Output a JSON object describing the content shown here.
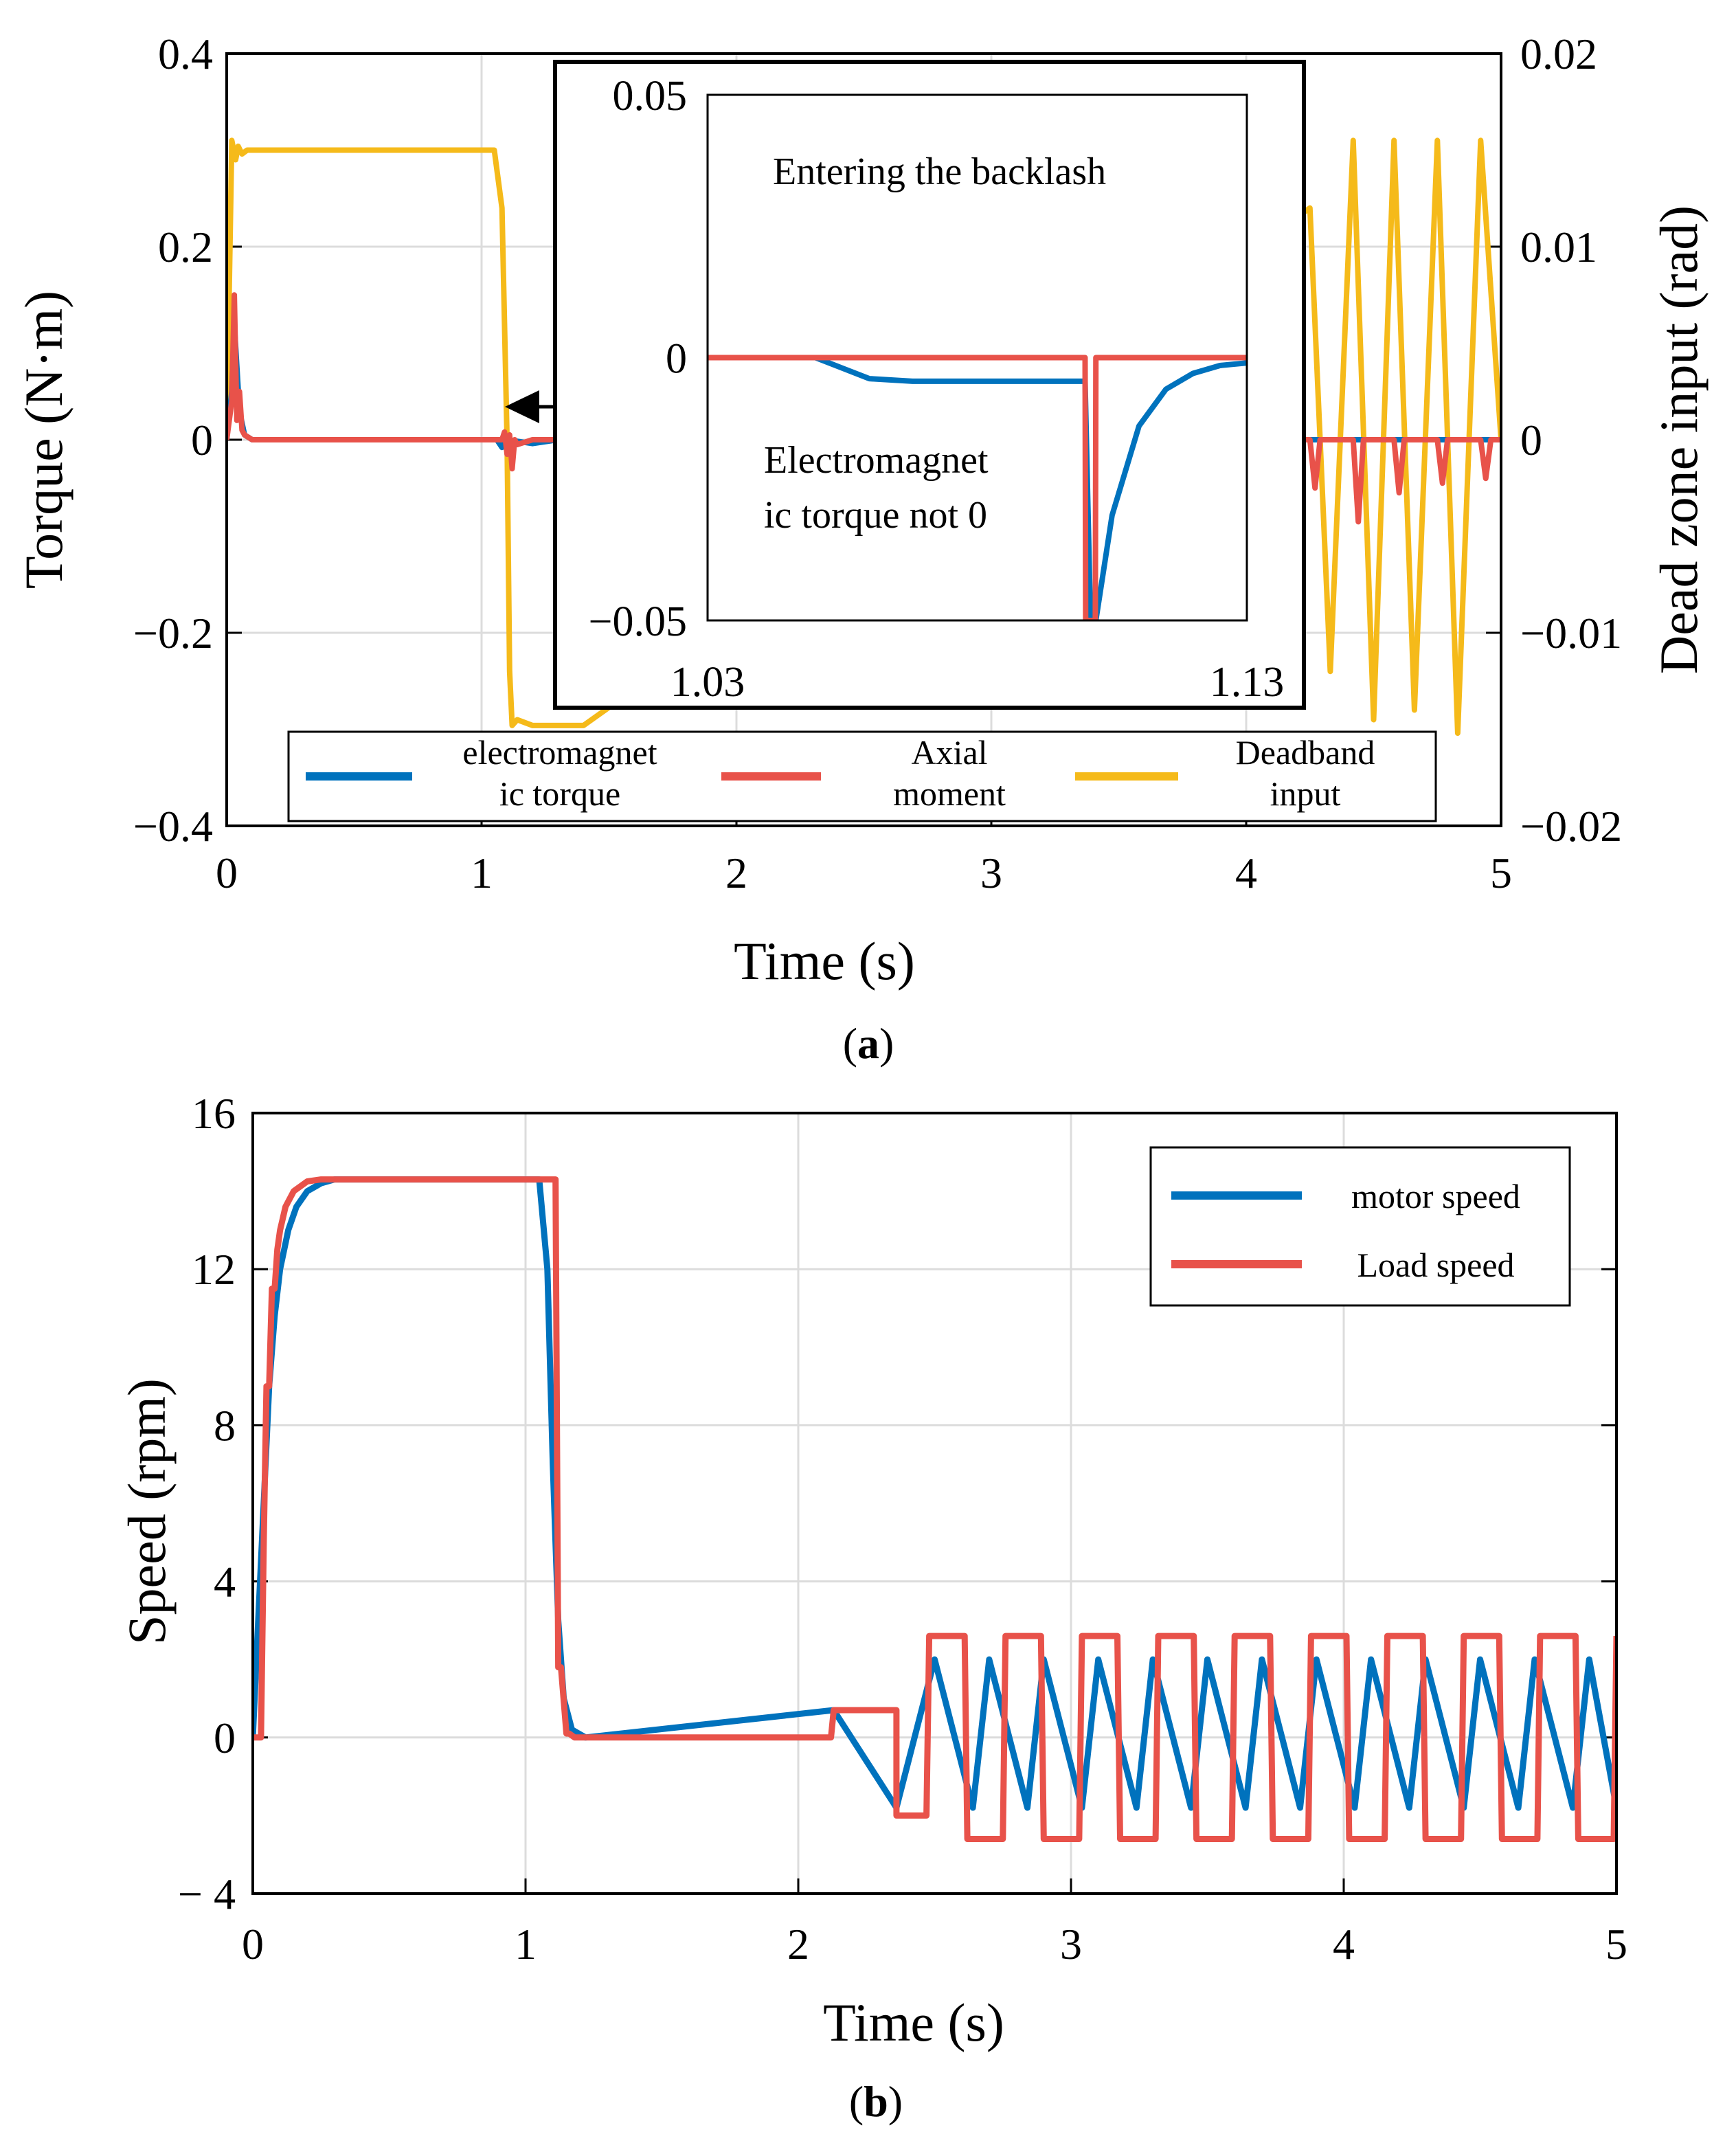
{
  "chart_data": [
    {
      "id": "a",
      "type": "line",
      "caption_letter": "a",
      "xlabel": "Time (s)",
      "ylabel": "Torque (N·m)",
      "y2label": "Dead zone input (rad)",
      "xlim": [
        0,
        5
      ],
      "ylim": [
        -0.4,
        0.4
      ],
      "y2lim": [
        -0.02,
        0.02
      ],
      "x_ticks": [
        "0",
        "1",
        "2",
        "3",
        "4",
        "5"
      ],
      "y_ticks": [
        "−0.4",
        "−0.2",
        "0",
        "0.2",
        "0.4"
      ],
      "y2_ticks": [
        "−0.02",
        "−0.01",
        "0",
        "0.01",
        "0.02"
      ],
      "grid": true,
      "series": [
        {
          "name": "electromagnetic torque",
          "legend_lines": [
            "electromagnet",
            "ic torque"
          ],
          "color": "#0072BD",
          "axis": "left",
          "x": [
            0,
            0.02,
            0.03,
            0.05,
            0.07,
            0.1,
            1.06,
            1.08,
            1.1,
            1.2,
            1.3,
            5
          ],
          "y": [
            0,
            0.05,
            0.12,
            0.03,
            0.005,
            0,
            0,
            -0.008,
            0,
            -0.004,
            0,
            0
          ]
        },
        {
          "name": "Axial moment",
          "legend_lines": [
            "Axial",
            "moment"
          ],
          "color": "#E8524A",
          "axis": "left",
          "x": [
            0,
            0.02,
            0.03,
            0.04,
            0.05,
            0.06,
            0.07,
            0.1,
            1.08,
            1.09,
            1.1,
            1.11,
            1.12,
            1.13,
            1.14,
            1.2,
            1.3,
            4.25,
            4.27,
            4.29,
            4.42,
            4.44,
            4.46,
            4.58,
            4.6,
            4.62,
            4.75,
            4.77,
            4.79,
            4.92,
            4.94,
            4.96,
            5
          ],
          "y": [
            0,
            0.04,
            0.15,
            0.02,
            0.05,
            0.01,
            0.005,
            0,
            0,
            0.008,
            -0.015,
            0.005,
            -0.03,
            0,
            -0.005,
            0,
            0,
            0,
            -0.05,
            0,
            0,
            -0.085,
            0,
            0,
            -0.055,
            0,
            0,
            -0.045,
            0,
            0,
            -0.04,
            0,
            0
          ]
        },
        {
          "name": "Deadband input",
          "legend_lines": [
            "Deadband",
            "input"
          ],
          "color": "#F5BA1A",
          "axis": "right",
          "x": [
            0,
            0.02,
            0.035,
            0.045,
            0.06,
            0.08,
            0.12,
            1.05,
            1.08,
            1.1,
            1.11,
            1.12,
            1.14,
            1.2,
            1.4,
            4.25,
            4.33,
            4.42,
            4.5,
            4.58,
            4.66,
            4.75,
            4.83,
            4.92,
            5
          ],
          "y": [
            0,
            0.0155,
            0.0145,
            0.0152,
            0.0148,
            0.015,
            0.015,
            0.015,
            0.012,
            0,
            -0.012,
            -0.0148,
            -0.0145,
            -0.0148,
            -0.0148,
            0.012,
            -0.012,
            0.0155,
            -0.0145,
            0.0155,
            -0.014,
            0.0155,
            -0.0152,
            0.0155,
            0
          ]
        }
      ],
      "inset": {
        "xlim": [
          1.03,
          1.13
        ],
        "ylim": [
          -0.05,
          0.05
        ],
        "x_ticks": [
          "1.03",
          "1.13"
        ],
        "y_ticks": [
          "0.05",
          "0",
          "−0.05"
        ],
        "annotations": [
          "Entering the backlash",
          "Electromagnet",
          "ic torque not 0"
        ],
        "series": [
          {
            "name": "electromagnetic torque",
            "color": "#0072BD",
            "x": [
              1.03,
              1.05,
              1.055,
              1.06,
              1.068,
              1.1,
              1.101,
              1.102,
              1.105,
              1.11,
              1.115,
              1.12,
              1.125,
              1.13
            ],
            "y": [
              0,
              0,
              -0.002,
              -0.004,
              -0.0045,
              -0.0045,
              -0.05,
              -0.05,
              -0.03,
              -0.013,
              -0.006,
              -0.003,
              -0.0015,
              -0.001
            ]
          },
          {
            "name": "Axial moment",
            "color": "#E8524A",
            "x": [
              1.03,
              1.1,
              1.1001,
              1.1019,
              1.102,
              1.13
            ],
            "y": [
              0,
              0,
              -0.05,
              -0.05,
              0,
              0
            ]
          }
        ]
      }
    },
    {
      "id": "b",
      "type": "line",
      "caption_letter": "b",
      "xlabel": "Time (s)",
      "ylabel": "Speed (rpm)",
      "xlim": [
        0,
        5
      ],
      "ylim": [
        -4,
        16
      ],
      "x_ticks": [
        "0",
        "1",
        "2",
        "3",
        "4",
        "5"
      ],
      "y_ticks": [
        "− 4",
        "0",
        "4",
        "8",
        "12",
        "16"
      ],
      "grid": true,
      "series": [
        {
          "name": "motor speed",
          "color": "#0072BD",
          "x": [
            0,
            0.02,
            0.04,
            0.06,
            0.08,
            0.1,
            0.13,
            0.16,
            0.2,
            0.25,
            0.3,
            0.35,
            0.4,
            1.05,
            1.08,
            1.1,
            1.12,
            1.14,
            1.17,
            1.22,
            2.13,
            2.36,
            2.5,
            2.64,
            2.7,
            2.84,
            2.9,
            3.04,
            3.1,
            3.24,
            3.3,
            3.44,
            3.5,
            3.64,
            3.7,
            3.84,
            3.9,
            4.04,
            4.1,
            4.24,
            4.3,
            4.44,
            4.5,
            4.64,
            4.7,
            4.84,
            4.9,
            5
          ],
          "y": [
            0,
            3,
            6,
            9,
            10.8,
            12,
            13,
            13.6,
            14.0,
            14.2,
            14.3,
            14.3,
            14.3,
            14.3,
            12,
            7,
            3,
            1,
            0.2,
            0,
            0.7,
            -1.8,
            2.0,
            -1.8,
            2.0,
            -1.8,
            2.0,
            -1.8,
            2.0,
            -1.8,
            2.0,
            -1.8,
            2.0,
            -1.8,
            2.0,
            -1.8,
            2.0,
            -1.8,
            2.0,
            -1.8,
            2.0,
            -1.8,
            2.0,
            -1.8,
            2.0,
            -1.8,
            2.0,
            -1.8
          ]
        },
        {
          "name": "Load speed",
          "color": "#E8524A",
          "x": [
            0,
            0.03,
            0.04,
            0.05,
            0.06,
            0.07,
            0.08,
            0.09,
            0.1,
            0.12,
            0.15,
            0.2,
            0.25,
            0.3,
            0.4,
            1.11,
            1.12,
            1.13,
            1.15,
            1.16,
            1.18,
            1.2,
            2.12,
            2.13,
            2.36,
            2.36,
            2.47,
            2.48,
            2.61,
            2.62,
            2.75,
            2.76,
            2.89,
            2.9,
            3.03,
            3.04,
            3.17,
            3.18,
            3.31,
            3.32,
            3.45,
            3.46,
            3.59,
            3.6,
            3.73,
            3.74,
            3.87,
            3.88,
            4.01,
            4.02,
            4.15,
            4.16,
            4.29,
            4.3,
            4.43,
            4.44,
            4.57,
            4.58,
            4.71,
            4.72,
            4.85,
            4.86,
            4.99,
            5.0
          ],
          "y": [
            0,
            0,
            5,
            9,
            9,
            11.5,
            11.5,
            12.5,
            13,
            13.6,
            14.0,
            14.25,
            14.3,
            14.3,
            14.3,
            14.3,
            1.8,
            1.8,
            0.1,
            0.1,
            0,
            0,
            0,
            0.7,
            0.7,
            -2.0,
            -2.0,
            2.6,
            2.6,
            -2.6,
            -2.6,
            2.6,
            2.6,
            -2.6,
            -2.6,
            2.6,
            2.6,
            -2.6,
            -2.6,
            2.6,
            2.6,
            -2.6,
            -2.6,
            2.6,
            2.6,
            -2.6,
            -2.6,
            2.6,
            2.6,
            -2.6,
            -2.6,
            2.6,
            2.6,
            -2.6,
            -2.6,
            2.6,
            2.6,
            -2.6,
            -2.6,
            2.6,
            2.6,
            -2.6,
            -2.6,
            2.6
          ]
        }
      ]
    }
  ]
}
